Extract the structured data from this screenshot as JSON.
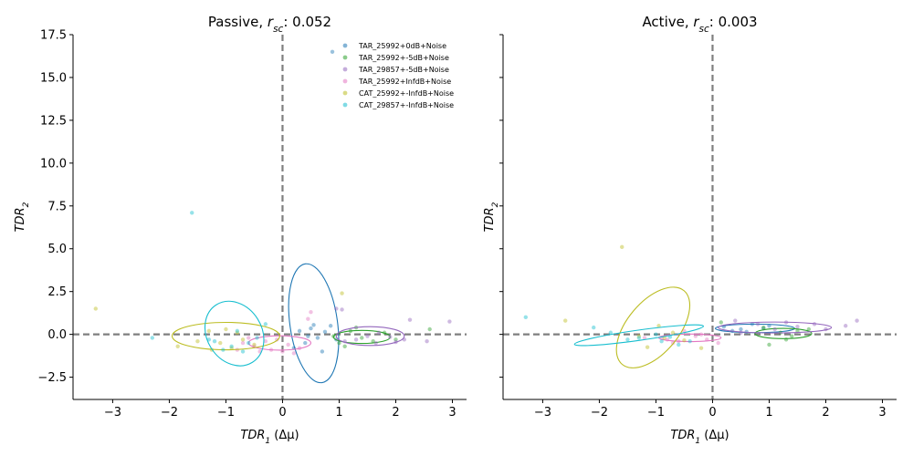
{
  "chart_data": [
    {
      "type": "scatter",
      "title_prefix": "Passive, ",
      "title_sym": "r",
      "title_sub": "sc",
      "title_value": ": 0.052",
      "xlabel_sym": "TDR",
      "xlabel_sub": "1",
      "xlabel_rest": " (Δμ)",
      "ylabel_sym": "TDR",
      "ylabel_sub": "2",
      "xlim": [
        -3.7,
        3.25
      ],
      "ylim": [
        -3.8,
        17.5
      ],
      "xticks": [
        -3,
        -2,
        -1,
        0,
        1,
        2,
        3
      ],
      "yticks": [
        -2.5,
        0.0,
        2.5,
        5.0,
        7.5,
        10.0,
        12.5,
        15.0,
        17.5
      ],
      "show_yticklabels": true,
      "grid": false,
      "legend_position": "top-right",
      "reference_lines": {
        "x": 0,
        "y": 0,
        "style": "dashed",
        "color": "#7f7f7f"
      },
      "series": [
        {
          "name": "TAR_25992+0dB+Noise",
          "color": "#1f77b4",
          "points": [
            [
              0.88,
              16.5
            ],
            [
              0.3,
              0.2
            ],
            [
              0.5,
              0.35
            ],
            [
              0.62,
              -0.2
            ],
            [
              0.75,
              0.15
            ],
            [
              0.4,
              -0.5
            ],
            [
              0.95,
              -0.3
            ],
            [
              0.55,
              0.55
            ],
            [
              0.2,
              -0.8
            ],
            [
              0.7,
              -1.0
            ],
            [
              0.85,
              0.5
            ],
            [
              0.45,
              -0.1
            ]
          ],
          "ellipse": {
            "cx": 0.55,
            "cy": 0.65,
            "rx": 0.42,
            "ry": 3.5,
            "angle": -8
          }
        },
        {
          "name": "TAR_25992+-5dB+Noise",
          "color": "#2ca02c",
          "points": [
            [
              2.6,
              0.3
            ],
            [
              1.1,
              -0.7
            ],
            [
              1.4,
              -0.2
            ],
            [
              1.8,
              0.1
            ],
            [
              1.2,
              0.2
            ],
            [
              1.6,
              -0.4
            ],
            [
              0.9,
              -0.1
            ],
            [
              2.0,
              -0.3
            ],
            [
              1.3,
              0.4
            ],
            [
              1.0,
              -0.5
            ]
          ],
          "ellipse": {
            "cx": 1.4,
            "cy": -0.15,
            "rx": 0.5,
            "ry": 0.38,
            "angle": 0
          }
        },
        {
          "name": "TAR_29857+-5dB+Noise",
          "color": "#9467bd",
          "points": [
            [
              2.95,
              0.75
            ],
            [
              2.25,
              0.85
            ],
            [
              2.55,
              -0.4
            ],
            [
              1.9,
              -0.15
            ],
            [
              1.65,
              -0.5
            ],
            [
              1.3,
              -0.3
            ],
            [
              1.05,
              1.45
            ],
            [
              0.95,
              1.5
            ],
            [
              1.5,
              -0.1
            ],
            [
              2.15,
              -0.3
            ],
            [
              1.7,
              0.1
            ],
            [
              1.1,
              -0.4
            ],
            [
              2.0,
              -0.45
            ]
          ],
          "ellipse": {
            "cx": 1.55,
            "cy": -0.1,
            "rx": 0.6,
            "ry": 0.55,
            "angle": 0
          }
        },
        {
          "name": "TAR_25992+InfdB+Noise",
          "color": "#e377c2",
          "points": [
            [
              -0.7,
              -0.5
            ],
            [
              -0.5,
              -0.7
            ],
            [
              -0.3,
              -0.4
            ],
            [
              -0.2,
              -0.9
            ],
            [
              0.0,
              -1.0
            ],
            [
              0.1,
              -0.6
            ],
            [
              0.3,
              -0.8
            ],
            [
              0.5,
              1.3
            ],
            [
              0.45,
              0.9
            ],
            [
              -0.8,
              -0.9
            ],
            [
              -0.4,
              -1.0
            ],
            [
              -0.1,
              -0.3
            ],
            [
              0.2,
              -1.1
            ],
            [
              -0.6,
              -0.2
            ]
          ],
          "ellipse": {
            "cx": -0.05,
            "cy": -0.5,
            "rx": 0.55,
            "ry": 0.42,
            "angle": 0
          }
        },
        {
          "name": "CAT_25992+-InfdB+Noise",
          "color": "#bcbd22",
          "points": [
            [
              -3.3,
              1.5
            ],
            [
              -1.85,
              -0.7
            ],
            [
              -1.3,
              0.2
            ],
            [
              -1.1,
              -0.5
            ],
            [
              -0.9,
              -0.8
            ],
            [
              -1.0,
              0.3
            ],
            [
              -0.7,
              -0.3
            ],
            [
              -1.5,
              -0.4
            ],
            [
              -1.25,
              -0.9
            ],
            [
              -0.8,
              0.1
            ],
            [
              1.05,
              2.4
            ],
            [
              -0.5,
              -0.6
            ]
          ],
          "ellipse": {
            "cx": -1.0,
            "cy": -0.1,
            "rx": 0.95,
            "ry": 0.8,
            "angle": 0
          }
        },
        {
          "name": "CAT_29857+-InfdB+Noise",
          "color": "#17becf",
          "points": [
            [
              -1.6,
              7.1
            ],
            [
              -2.3,
              -0.2
            ],
            [
              -1.3,
              -0.3
            ],
            [
              -0.9,
              -0.7
            ],
            [
              -0.6,
              -0.5
            ],
            [
              -0.8,
              0.2
            ],
            [
              -1.2,
              -0.4
            ],
            [
              -0.45,
              -0.2
            ],
            [
              -1.05,
              -0.9
            ],
            [
              -0.3,
              0.6
            ],
            [
              -0.7,
              -1.0
            ]
          ],
          "ellipse": {
            "cx": -0.85,
            "cy": 0.05,
            "rx": 0.6,
            "ry": 1.6,
            "angle": 58
          }
        }
      ]
    },
    {
      "type": "scatter",
      "title_prefix": "Active, ",
      "title_sym": "r",
      "title_sub": "sc",
      "title_value": ": 0.003",
      "xlabel_sym": "TDR",
      "xlabel_sub": "1",
      "xlabel_rest": " (Δμ)",
      "ylabel_sym": "TDR",
      "ylabel_sub": "2",
      "xlim": [
        -3.7,
        3.25
      ],
      "ylim": [
        -3.8,
        17.5
      ],
      "xticks": [
        -3,
        -2,
        -1,
        0,
        1,
        2,
        3
      ],
      "yticks": [
        -2.5,
        0.0,
        2.5,
        5.0,
        7.5,
        10.0,
        12.5,
        15.0,
        17.5
      ],
      "show_yticklabels": false,
      "grid": false,
      "reference_lines": {
        "x": 0,
        "y": 0,
        "style": "dashed",
        "color": "#7f7f7f"
      },
      "series": [
        {
          "name": "TAR_25992+0dB+Noise",
          "color": "#1f77b4",
          "points": [
            [
              0.2,
              0.45
            ],
            [
              0.5,
              0.3
            ],
            [
              0.7,
              0.6
            ],
            [
              0.35,
              0.2
            ],
            [
              0.9,
              0.35
            ],
            [
              0.6,
              0.15
            ],
            [
              1.0,
              0.5
            ]
          ],
          "ellipse": {
            "cx": 0.75,
            "cy": 0.35,
            "rx": 0.7,
            "ry": 0.25,
            "angle": 0
          }
        },
        {
          "name": "TAR_25992+-5dB+Noise",
          "color": "#2ca02c",
          "points": [
            [
              1.0,
              -0.6
            ],
            [
              1.3,
              -0.3
            ],
            [
              1.5,
              0.2
            ],
            [
              1.2,
              0.1
            ],
            [
              1.7,
              0.3
            ],
            [
              0.9,
              0.4
            ],
            [
              1.4,
              -0.1
            ],
            [
              0.15,
              0.7
            ]
          ],
          "ellipse": {
            "cx": 1.25,
            "cy": 0.05,
            "rx": 0.5,
            "ry": 0.3,
            "angle": 0
          }
        },
        {
          "name": "TAR_29857+-5dB+Noise",
          "color": "#9467bd",
          "points": [
            [
              2.55,
              0.8
            ],
            [
              2.35,
              0.5
            ],
            [
              0.4,
              0.8
            ],
            [
              0.8,
              0.6
            ],
            [
              1.1,
              0.3
            ],
            [
              1.5,
              0.45
            ],
            [
              1.8,
              0.6
            ],
            [
              2.0,
              0.3
            ],
            [
              0.5,
              0.1
            ],
            [
              1.3,
              0.7
            ]
          ],
          "ellipse": {
            "cx": 1.1,
            "cy": 0.4,
            "rx": 1.0,
            "ry": 0.32,
            "angle": 0
          }
        },
        {
          "name": "TAR_25992+InfdB+Noise",
          "color": "#e377c2",
          "points": [
            [
              -0.9,
              -0.2
            ],
            [
              -0.6,
              -0.4
            ],
            [
              -0.3,
              -0.1
            ],
            [
              -0.1,
              -0.3
            ],
            [
              0.1,
              -0.5
            ],
            [
              -0.5,
              0.2
            ],
            [
              -0.8,
              -0.3
            ],
            [
              -0.2,
              0.0
            ],
            [
              -1.2,
              -0.2
            ],
            [
              -0.7,
              -0.5
            ]
          ],
          "ellipse": {
            "cx": -0.4,
            "cy": -0.2,
            "rx": 0.55,
            "ry": 0.22,
            "angle": 0
          }
        },
        {
          "name": "CAT_25992+-InfdB+Noise",
          "color": "#bcbd22",
          "points": [
            [
              -1.6,
              5.1
            ],
            [
              -2.6,
              0.8
            ],
            [
              -1.15,
              -0.75
            ],
            [
              -0.95,
              0.5
            ],
            [
              -0.7,
              0.1
            ],
            [
              -0.5,
              -0.35
            ],
            [
              -0.2,
              -0.8
            ],
            [
              -1.3,
              -0.1
            ],
            [
              -0.85,
              -0.2
            ]
          ],
          "ellipse": {
            "cx": -1.05,
            "cy": 0.4,
            "rx": 0.85,
            "ry": 1.5,
            "angle": -50
          }
        },
        {
          "name": "CAT_29857+-InfdB+Noise",
          "color": "#17becf",
          "points": [
            [
              -3.3,
              1.0
            ],
            [
              -2.1,
              0.4
            ],
            [
              -1.8,
              0.1
            ],
            [
              -1.3,
              -0.2
            ],
            [
              -0.9,
              -0.4
            ],
            [
              -0.6,
              -0.6
            ],
            [
              -1.0,
              0.0
            ],
            [
              -1.5,
              -0.3
            ],
            [
              -0.4,
              -0.4
            ],
            [
              -0.75,
              -0.15
            ]
          ],
          "ellipse": {
            "cx": -1.3,
            "cy": -0.05,
            "rx": 1.15,
            "ry": 0.3,
            "angle": -8
          }
        }
      ]
    }
  ]
}
